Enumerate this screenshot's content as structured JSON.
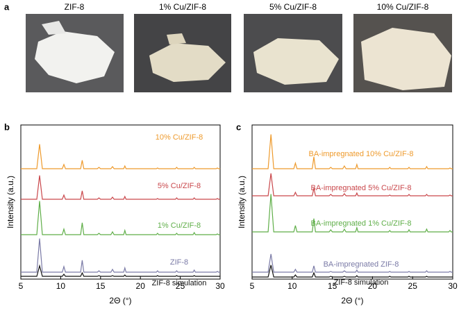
{
  "panel_labels": [
    "a",
    "b",
    "c"
  ],
  "photos": {
    "labels": [
      "ZIF-8",
      "1% Cu/ZIF-8",
      "5% Cu/ZIF-8",
      "10% Cu/ZIF-8"
    ]
  },
  "chart_data": [
    {
      "type": "line",
      "y_label": "Intensity (a.u.)",
      "x_label": "2Θ (°)",
      "xlim": [
        5,
        30
      ],
      "xticks": [
        5,
        10,
        15,
        20,
        25,
        30
      ],
      "ylim": [
        0,
        220
      ],
      "x": [
        5,
        7.0,
        7.35,
        7.7,
        10.2,
        10.4,
        10.6,
        12.5,
        12.7,
        12.9,
        14.6,
        14.8,
        15.0,
        16.3,
        16.5,
        16.7,
        17.9,
        18.05,
        18.2,
        22.0,
        22.15,
        22.3,
        24.4,
        24.55,
        24.7,
        26.6,
        26.75,
        26.9,
        29.5,
        29.65,
        29.8,
        30
      ],
      "series": [
        {
          "name": "ZIF-8 simulation",
          "color": "#111111",
          "values": [
            0,
            0,
            15,
            0,
            0,
            3,
            0,
            0,
            5,
            0,
            0,
            1,
            0,
            0,
            1,
            0,
            0,
            2,
            0,
            0,
            1,
            0,
            0,
            1,
            0,
            0,
            1,
            0,
            0,
            0,
            0,
            0
          ]
        },
        {
          "name": "ZIF-8",
          "color": "#7a7aa6",
          "values": [
            0,
            0,
            48,
            0,
            0,
            8,
            0,
            0,
            17,
            0,
            0,
            2,
            0,
            0,
            4,
            0,
            0,
            6,
            0,
            0,
            2,
            0,
            0,
            2,
            0,
            0,
            3,
            0,
            0,
            1,
            0,
            0
          ]
        },
        {
          "name": "1% Cu/ZIF-8",
          "color": "#5fae48",
          "values": [
            0,
            0,
            48,
            0,
            0,
            8,
            0,
            0,
            17,
            0,
            0,
            2,
            0,
            0,
            4,
            0,
            0,
            6,
            0,
            0,
            2,
            0,
            0,
            2,
            0,
            0,
            3,
            0,
            0,
            1,
            0,
            0
          ]
        },
        {
          "name": "5% Cu/ZIF-8",
          "color": "#c9474b",
          "values": [
            0,
            0,
            34,
            0,
            0,
            6,
            0,
            0,
            12,
            0,
            0,
            2,
            0,
            0,
            3,
            0,
            0,
            4,
            0,
            0,
            1,
            0,
            0,
            2,
            0,
            0,
            2,
            0,
            0,
            1,
            0,
            0
          ]
        },
        {
          "name": "10% Cu/ZIF-8",
          "color": "#ee9a2c",
          "values": [
            0,
            0,
            35,
            0,
            0,
            6,
            0,
            0,
            12,
            0,
            0,
            2,
            0,
            0,
            3,
            0,
            0,
            4,
            0,
            0,
            1,
            0,
            0,
            2,
            0,
            0,
            2,
            0,
            0,
            1,
            0,
            0
          ]
        }
      ]
    },
    {
      "type": "line",
      "y_label": "Intensity (a.u.)",
      "x_label": "2Θ (°)",
      "xlim": [
        5,
        30
      ],
      "xticks": [
        5,
        10,
        15,
        20,
        25,
        30
      ],
      "ylim": [
        0,
        220
      ],
      "x": [
        5,
        7.0,
        7.35,
        7.7,
        10.2,
        10.4,
        10.6,
        12.5,
        12.7,
        12.9,
        14.6,
        14.8,
        15.0,
        16.3,
        16.5,
        16.7,
        17.9,
        18.05,
        18.2,
        22.0,
        22.15,
        22.3,
        24.4,
        24.55,
        24.7,
        26.6,
        26.75,
        26.9,
        29.5,
        29.65,
        29.8,
        30
      ],
      "series": [
        {
          "name": "ZIF-8 simulation",
          "color": "#111111",
          "values": [
            0,
            0,
            17,
            0,
            0,
            3,
            0,
            0,
            6,
            0,
            0,
            1,
            0,
            0,
            1,
            0,
            0,
            2,
            0,
            0,
            1,
            0,
            0,
            1,
            0,
            0,
            1,
            0,
            0,
            0,
            0,
            0
          ]
        },
        {
          "name": "BA-impregnated ZIF-8",
          "color": "#7a7aa6",
          "values": [
            0,
            0,
            26,
            0,
            0,
            4,
            0,
            0,
            9,
            0,
            0,
            1,
            0,
            0,
            2,
            0,
            0,
            3,
            0,
            0,
            1,
            0,
            0,
            1,
            0,
            0,
            2,
            0,
            0,
            1,
            0,
            0
          ]
        },
        {
          "name": "BA-impregnated 1% Cu/ZIF-8",
          "color": "#5fae48",
          "values": [
            0,
            0,
            54,
            0,
            0,
            9,
            0,
            0,
            19,
            0,
            0,
            3,
            0,
            0,
            4,
            0,
            0,
            6,
            0,
            0,
            2,
            0,
            0,
            3,
            0,
            0,
            4,
            0,
            0,
            2,
            0,
            0
          ]
        },
        {
          "name": "BA-impregnated 5% Cu/ZIF-8",
          "color": "#c9474b",
          "values": [
            0,
            0,
            32,
            0,
            0,
            5,
            0,
            0,
            11,
            0,
            0,
            2,
            0,
            0,
            3,
            0,
            0,
            4,
            0,
            0,
            1,
            0,
            0,
            2,
            0,
            0,
            2,
            0,
            0,
            1,
            0,
            0
          ]
        },
        {
          "name": "BA-impregnated 10% Cu/ZIF-8",
          "color": "#ee9a2c",
          "values": [
            0,
            0,
            49,
            0,
            0,
            8,
            0,
            0,
            17,
            0,
            0,
            2,
            0,
            0,
            4,
            0,
            0,
            6,
            0,
            0,
            2,
            0,
            0,
            2,
            0,
            0,
            3,
            0,
            0,
            1,
            0,
            0
          ]
        }
      ]
    }
  ]
}
